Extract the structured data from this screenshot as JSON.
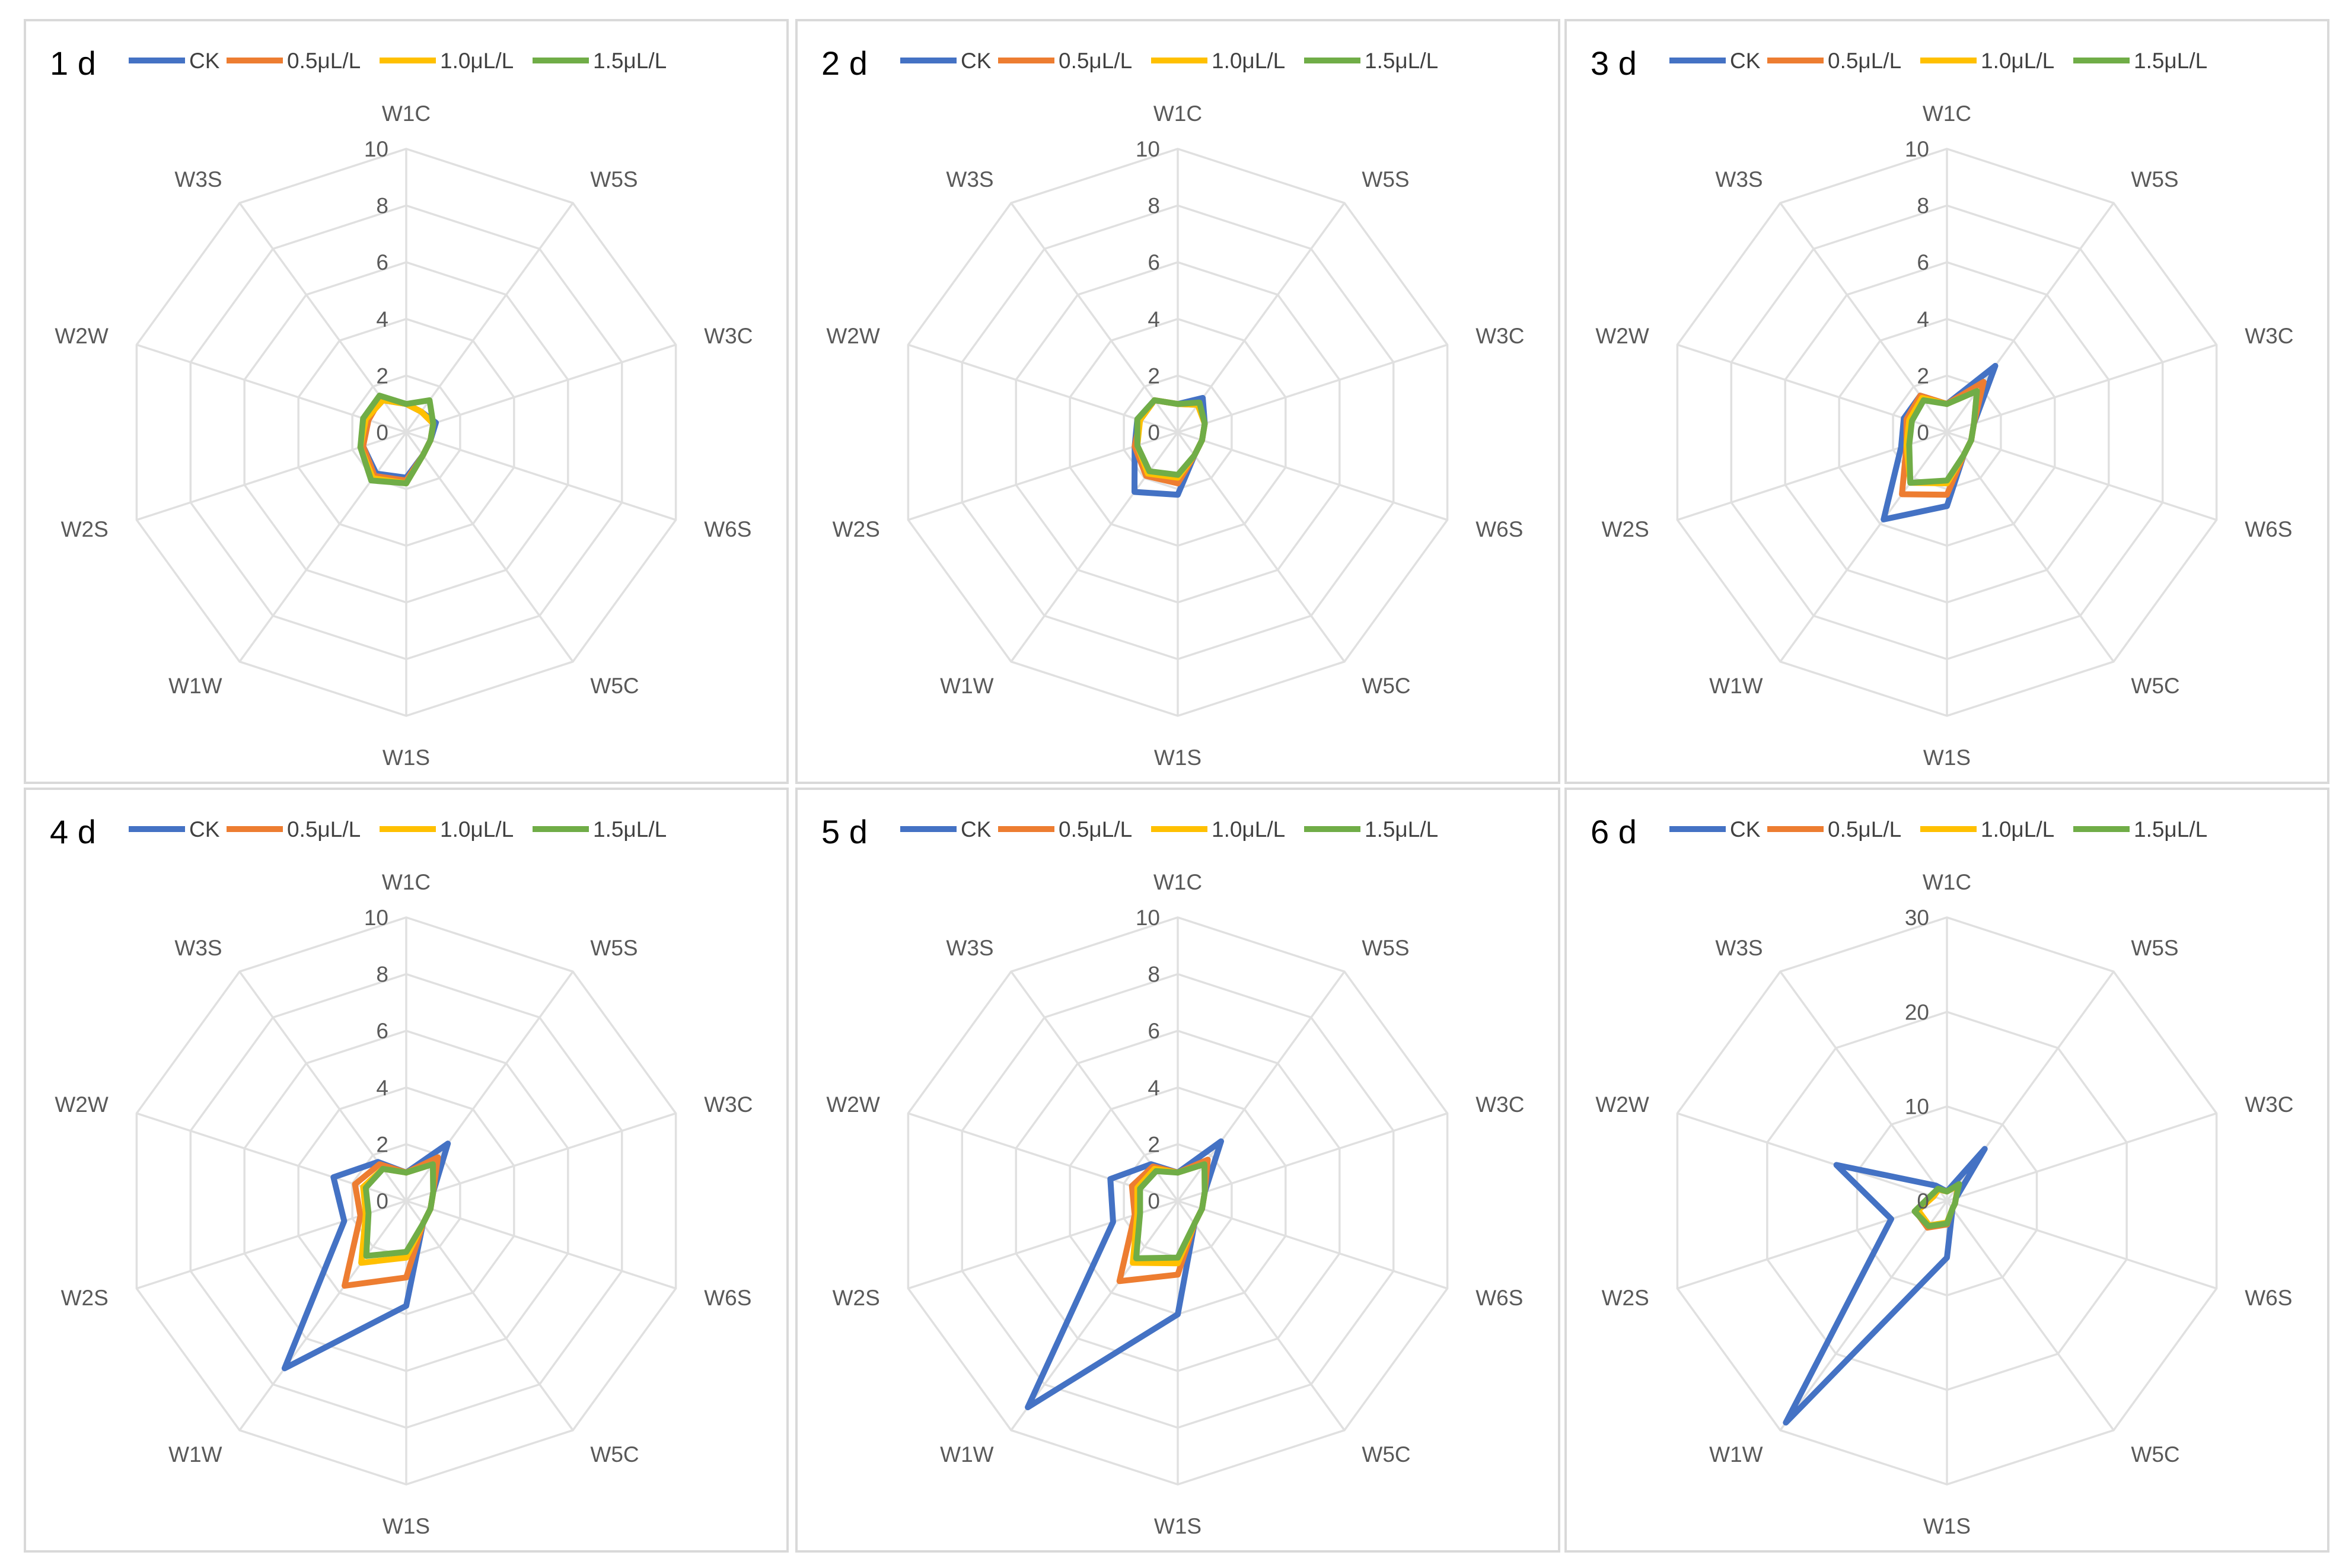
{
  "chart_data": [
    {
      "type": "radar",
      "title": "1 d",
      "categories": [
        "W1C",
        "W5S",
        "W3C",
        "W6S",
        "W5C",
        "W1S",
        "W1W",
        "W2S",
        "W2W",
        "W3S"
      ],
      "ticks": [
        "0",
        "2",
        "4",
        "6",
        "8",
        "10"
      ],
      "rmax": 10,
      "series": [
        {
          "name": "CK",
          "values": [
            1.0,
            0.9,
            1.1,
            0.9,
            1.0,
            1.6,
            1.8,
            1.6,
            1.5,
            1.4
          ]
        },
        {
          "name": "0.5μL/L",
          "values": [
            1.0,
            0.9,
            1.0,
            0.9,
            1.0,
            1.7,
            1.9,
            1.6,
            1.4,
            1.5
          ]
        },
        {
          "name": "1.0μL/L",
          "values": [
            1.0,
            0.9,
            1.0,
            0.9,
            1.0,
            1.8,
            2.0,
            1.7,
            1.5,
            1.4
          ]
        },
        {
          "name": "1.5μL/L",
          "values": [
            1.0,
            1.4,
            1.0,
            0.9,
            1.0,
            1.8,
            2.1,
            1.7,
            1.6,
            1.6
          ]
        }
      ]
    },
    {
      "type": "radar",
      "title": "2 d",
      "categories": [
        "W1C",
        "W5S",
        "W3C",
        "W6S",
        "W5C",
        "W1S",
        "W1W",
        "W2S",
        "W2W",
        "W3S"
      ],
      "ticks": [
        "0",
        "2",
        "4",
        "6",
        "8",
        "10"
      ],
      "rmax": 10,
      "series": [
        {
          "name": "CK",
          "values": [
            1.0,
            1.5,
            1.0,
            0.9,
            1.0,
            2.2,
            2.6,
            1.6,
            1.5,
            1.4
          ]
        },
        {
          "name": "0.5μL/L",
          "values": [
            1.0,
            1.2,
            1.0,
            0.9,
            1.0,
            1.8,
            1.9,
            1.6,
            1.4,
            1.4
          ]
        },
        {
          "name": "1.0μL/L",
          "values": [
            1.0,
            1.2,
            1.0,
            0.9,
            1.0,
            1.6,
            1.8,
            1.5,
            1.4,
            1.4
          ]
        },
        {
          "name": "1.5μL/L",
          "values": [
            1.0,
            1.3,
            1.0,
            0.9,
            1.0,
            1.5,
            1.7,
            1.5,
            1.5,
            1.4
          ]
        }
      ]
    },
    {
      "type": "radar",
      "title": "3 d",
      "categories": [
        "W1C",
        "W5S",
        "W3C",
        "W6S",
        "W5C",
        "W1S",
        "W1W",
        "W2S",
        "W2W",
        "W3S"
      ],
      "ticks": [
        "0",
        "2",
        "4",
        "6",
        "8",
        "10"
      ],
      "rmax": 10,
      "series": [
        {
          "name": "CK",
          "values": [
            1.0,
            2.9,
            1.0,
            0.9,
            1.0,
            2.6,
            3.8,
            1.7,
            1.6,
            1.6
          ]
        },
        {
          "name": "0.5μL/L",
          "values": [
            1.0,
            2.2,
            1.0,
            0.9,
            1.0,
            2.2,
            2.7,
            1.5,
            1.5,
            1.6
          ]
        },
        {
          "name": "1.0μL/L",
          "values": [
            1.0,
            1.8,
            1.0,
            0.9,
            1.0,
            1.8,
            2.2,
            1.5,
            1.4,
            1.5
          ]
        },
        {
          "name": "1.5μL/L",
          "values": [
            1.0,
            1.8,
            1.0,
            0.9,
            1.0,
            1.7,
            2.2,
            1.4,
            1.3,
            1.4
          ]
        }
      ]
    },
    {
      "type": "radar",
      "title": "4 d",
      "categories": [
        "W1C",
        "W5S",
        "W3C",
        "W6S",
        "W5C",
        "W1S",
        "W1W",
        "W2S",
        "W2W",
        "W3S"
      ],
      "ticks": [
        "0",
        "2",
        "4",
        "6",
        "8",
        "10"
      ],
      "rmax": 10,
      "series": [
        {
          "name": "CK",
          "values": [
            1.0,
            2.5,
            1.0,
            0.9,
            1.0,
            3.7,
            7.3,
            2.3,
            2.7,
            1.7
          ]
        },
        {
          "name": "0.5μL/L",
          "values": [
            1.0,
            1.9,
            1.0,
            0.9,
            1.0,
            2.7,
            3.7,
            1.7,
            1.9,
            1.6
          ]
        },
        {
          "name": "1.0μL/L",
          "values": [
            1.0,
            1.6,
            1.0,
            0.9,
            1.0,
            2.0,
            2.7,
            1.5,
            1.6,
            1.4
          ]
        },
        {
          "name": "1.5μL/L",
          "values": [
            1.0,
            1.6,
            1.0,
            0.9,
            1.0,
            1.8,
            2.4,
            1.4,
            1.5,
            1.4
          ]
        }
      ]
    },
    {
      "type": "radar",
      "title": "5 d",
      "categories": [
        "W1C",
        "W5S",
        "W3C",
        "W6S",
        "W5C",
        "W1S",
        "W1W",
        "W2S",
        "W2W",
        "W3S"
      ],
      "ticks": [
        "0",
        "2",
        "4",
        "6",
        "8",
        "10"
      ],
      "rmax": 10,
      "series": [
        {
          "name": "CK",
          "values": [
            1.0,
            2.6,
            1.0,
            0.9,
            1.0,
            4.0,
            9.0,
            2.4,
            2.5,
            1.6
          ]
        },
        {
          "name": "0.5μL/L",
          "values": [
            1.0,
            1.8,
            1.0,
            0.9,
            1.0,
            2.6,
            3.5,
            1.6,
            1.7,
            1.5
          ]
        },
        {
          "name": "1.0μL/L",
          "values": [
            1.0,
            1.6,
            1.0,
            0.9,
            1.0,
            2.2,
            2.7,
            1.5,
            1.5,
            1.4
          ]
        },
        {
          "name": "1.5μL/L",
          "values": [
            1.0,
            1.6,
            1.0,
            0.9,
            1.0,
            2.0,
            2.5,
            1.4,
            1.4,
            1.3
          ]
        }
      ]
    },
    {
      "type": "radar",
      "title": "6 d",
      "categories": [
        "W1C",
        "W5S",
        "W3C",
        "W6S",
        "W5C",
        "W1S",
        "W1W",
        "W2S",
        "W2W",
        "W3S"
      ],
      "ticks": [
        "0",
        "10",
        "20",
        "30"
      ],
      "rmax": 30,
      "series": [
        {
          "name": "CK",
          "values": [
            1.0,
            6.8,
            1.0,
            0.9,
            1.0,
            6.0,
            29.0,
            6.2,
            12.3,
            2.0
          ]
        },
        {
          "name": "0.5μL/L",
          "values": [
            1.0,
            2.0,
            1.0,
            0.9,
            1.0,
            2.5,
            3.5,
            3.5,
            1.5,
            1.5
          ]
        },
        {
          "name": "1.0μL/L",
          "values": [
            1.0,
            2.0,
            1.0,
            0.9,
            1.0,
            2.3,
            3.2,
            3.2,
            1.5,
            1.5
          ]
        },
        {
          "name": "1.5μL/L",
          "values": [
            1.0,
            2.2,
            1.0,
            0.9,
            1.0,
            2.4,
            3.3,
            3.6,
            1.8,
            1.6
          ]
        }
      ]
    }
  ],
  "series_colors": {
    "CK": "#4472C4",
    "0.5μL/L": "#ED7D31",
    "1.0μL/L": "#FFC000",
    "1.5μL/L": "#70AD47"
  }
}
